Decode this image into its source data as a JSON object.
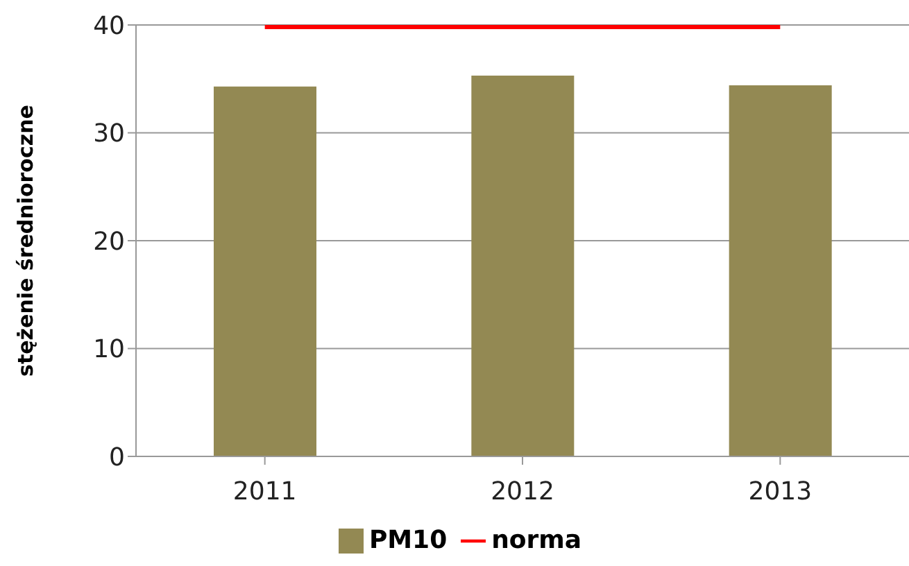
{
  "chart_data": {
    "type": "bar",
    "ylabel": "stężenie średnioroczne",
    "categories": [
      "2011",
      "2012",
      "2013"
    ],
    "series": [
      {
        "name": "PM10",
        "color": "#938953",
        "values": [
          34.3,
          35.3,
          34.4
        ]
      },
      {
        "name": "norma",
        "type": "line",
        "color": "#ff0000",
        "values": [
          40,
          40,
          40
        ]
      }
    ],
    "ylim": [
      0,
      40
    ],
    "yticks": [
      0,
      10,
      20,
      30,
      40
    ],
    "grid": "y",
    "legend": "bottom",
    "marker": "none"
  }
}
